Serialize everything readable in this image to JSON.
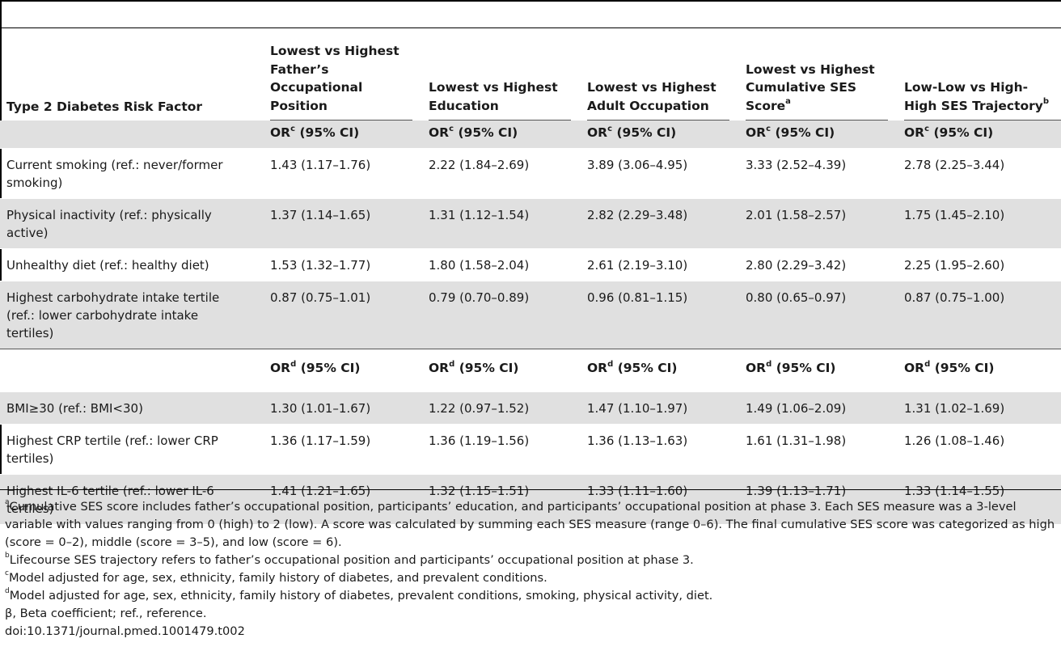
{
  "table": {
    "header": {
      "risk_factor": "Type 2 Diabetes Risk Factor",
      "col1": [
        "Lowest vs Highest",
        "Father’s",
        "Occupational",
        "Position"
      ],
      "col2": [
        "Lowest vs Highest",
        "Education"
      ],
      "col3": [
        "Lowest vs Highest",
        "Adult Occupation"
      ],
      "col4_lines": [
        "Lowest vs Highest",
        "Cumulative SES"
      ],
      "col4_last": "Score",
      "col4_sup": "a",
      "col5_lines": [
        "Low-Low vs High-"
      ],
      "col5_last": "High SES Trajectory",
      "col5_sup": "b"
    },
    "or_label_prefix": "OR",
    "or_label_suffix": " (95% CI)",
    "or_sup_c": "c",
    "or_sup_d": "d",
    "section1_rows": [
      {
        "label": "Current smoking (ref.: never/former smoking)",
        "values": [
          "1.43 (1.17–1.76)",
          "2.22 (1.84–2.69)",
          "3.89 (3.06–4.95)",
          "3.33 (2.52–4.39)",
          "2.78 (2.25–3.44)"
        ]
      },
      {
        "label": "Physical inactivity (ref.: physically active)",
        "values": [
          "1.37 (1.14–1.65)",
          "1.31 (1.12–1.54)",
          "2.82 (2.29–3.48)",
          "2.01 (1.58–2.57)",
          "1.75 (1.45–2.10)"
        ]
      },
      {
        "label": "Unhealthy diet (ref.: healthy diet)",
        "values": [
          "1.53 (1.32–1.77)",
          "1.80 (1.58–2.04)",
          "2.61 (2.19–3.10)",
          "2.80 (2.29–3.42)",
          "2.25 (1.95–2.60)"
        ]
      },
      {
        "label": "Highest carbohydrate intake tertile (ref.: lower carbohydrate intake tertiles)",
        "values": [
          "0.87 (0.75–1.01)",
          "0.79 (0.70–0.89)",
          "0.96 (0.81–1.15)",
          "0.80 (0.65–0.97)",
          "0.87 (0.75–1.00)"
        ]
      }
    ],
    "section2_rows": [
      {
        "label": "BMI≥30 (ref.: BMI<30)",
        "values": [
          "1.30 (1.01–1.67)",
          "1.22 (0.97–1.52)",
          "1.47 (1.10–1.97)",
          "1.49 (1.06–2.09)",
          "1.31 (1.02–1.69)"
        ]
      },
      {
        "label": "Highest CRP tertile (ref.: lower CRP tertiles)",
        "values": [
          "1.36 (1.17–1.59)",
          "1.36 (1.19–1.56)",
          "1.36 (1.13–1.63)",
          "1.61 (1.31–1.98)",
          "1.26 (1.08–1.46)"
        ]
      },
      {
        "label": "Highest IL-6 tertile (ref.: lower IL-6 tertiles)",
        "values": [
          "1.41 (1.21–1.65)",
          "1.32 (1.15–1.51)",
          "1.33 (1.11–1.60)",
          "1.39 (1.13–1.71)",
          "1.33 (1.14–1.55)"
        ]
      }
    ]
  },
  "footnotes": {
    "a_mark": "a",
    "a": "Cumulative SES score includes father’s occupational position, participants’ education, and participants’ occupational position at phase 3. Each SES measure was a 3-level variable with values ranging from 0 (high) to 2 (low). A score was calculated by summing each SES measure (range 0–6). The final cumulative SES score was categorized as high (score = 0–2), middle (score = 3–5), and low (score = 6).",
    "b_mark": "b",
    "b": "Lifecourse SES trajectory refers to father’s occupational position and participants’ occupational position at phase 3.",
    "c_mark": "c",
    "c": "Model adjusted for age, sex, ethnicity, family history of diabetes, and prevalent conditions.",
    "d_mark": "d",
    "d": "Model adjusted for age, sex, ethnicity, family history of diabetes, prevalent conditions, smoking, physical activity, diet.",
    "beta": "β, Beta coefficient; ref., reference.",
    "doi": "doi:10.1371/journal.pmed.1001479.t002"
  }
}
